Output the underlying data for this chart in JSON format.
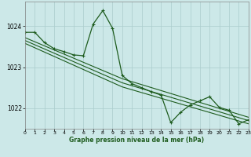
{
  "title": "Graphe pression niveau de la mer (hPa)",
  "bg_color": "#cce8e8",
  "grid_color": "#aacccc",
  "line_color": "#1e5c1e",
  "xlim": [
    0,
    23
  ],
  "ylim": [
    1021.5,
    1024.6
  ],
  "yticks": [
    1022,
    1023,
    1024
  ],
  "xticks": [
    0,
    1,
    2,
    3,
    4,
    5,
    6,
    7,
    8,
    9,
    10,
    11,
    12,
    13,
    14,
    15,
    16,
    17,
    18,
    19,
    20,
    21,
    22,
    23
  ],
  "line1_x": [
    0,
    1,
    2,
    3,
    4,
    5,
    6,
    7,
    8,
    9,
    10,
    11,
    12,
    13,
    14,
    15,
    16,
    17,
    18,
    19,
    20,
    21,
    22,
    23
  ],
  "line1_y": [
    1023.85,
    1023.85,
    1023.6,
    1023.45,
    1023.38,
    1023.3,
    1023.28,
    1024.05,
    1024.38,
    1023.95,
    1022.8,
    1022.6,
    1022.5,
    1022.4,
    1022.32,
    1021.65,
    1021.9,
    1022.08,
    1022.18,
    1022.28,
    1022.02,
    1021.95,
    1021.62,
    1021.72
  ],
  "line2_x": [
    0,
    10,
    23
  ],
  "line2_y": [
    1023.72,
    1022.72,
    1021.78
  ],
  "line3_x": [
    0,
    10,
    23
  ],
  "line3_y": [
    1023.65,
    1022.62,
    1021.7
  ],
  "line4_x": [
    0,
    10,
    23
  ],
  "line4_y": [
    1023.58,
    1022.52,
    1021.62
  ]
}
